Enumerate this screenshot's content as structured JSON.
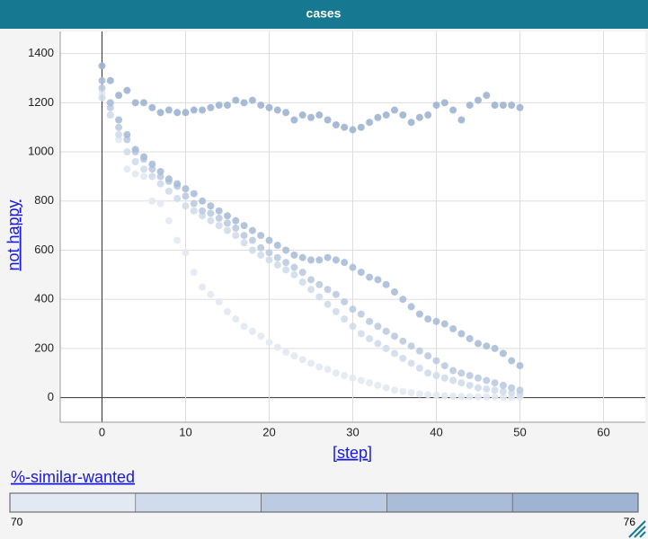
{
  "header": {
    "title": "cases"
  },
  "chart_data": {
    "type": "scatter",
    "x_label": "[step]",
    "y_label": "not happy",
    "xlim": [
      -5,
      65
    ],
    "xticks": [
      0,
      10,
      20,
      30,
      40,
      50,
      60
    ],
    "ylim": [
      -100,
      1490
    ],
    "yticks": [
      0,
      200,
      400,
      600,
      800,
      1000,
      1200,
      1400
    ],
    "grid": true,
    "x": [
      0,
      1,
      2,
      3,
      4,
      5,
      6,
      7,
      8,
      9,
      10,
      11,
      12,
      13,
      14,
      15,
      16,
      17,
      18,
      19,
      20,
      21,
      22,
      23,
      24,
      25,
      26,
      27,
      28,
      29,
      30,
      31,
      32,
      33,
      34,
      35,
      36,
      37,
      38,
      39,
      40,
      41,
      42,
      43,
      44,
      45,
      46,
      47,
      48,
      49,
      50
    ],
    "series": [
      {
        "color": "#e3e9f2",
        "values": [
          1240,
          1150,
          1050,
          930,
          910,
          900,
          800,
          790,
          720,
          640,
          590,
          510,
          450,
          420,
          390,
          350,
          320,
          290,
          270,
          250,
          225,
          205,
          185,
          170,
          155,
          140,
          125,
          115,
          100,
          90,
          80,
          70,
          60,
          50,
          40,
          30,
          25,
          20,
          15,
          12,
          10,
          8,
          6,
          5,
          4,
          3,
          3,
          2,
          2,
          1,
          1
        ]
      },
      {
        "color": "#d0dbeb",
        "values": [
          1220,
          1150,
          1070,
          1000,
          960,
          930,
          900,
          870,
          840,
          810,
          780,
          760,
          740,
          720,
          700,
          680,
          660,
          630,
          600,
          580,
          560,
          540,
          520,
          500,
          470,
          440,
          410,
          380,
          350,
          320,
          290,
          260,
          240,
          220,
          200,
          180,
          160,
          140,
          120,
          100,
          90,
          80,
          70,
          60,
          50,
          40,
          35,
          30,
          25,
          20,
          15
        ]
      },
      {
        "color": "#bccbe1",
        "values": [
          1260,
          1180,
          1100,
          1050,
          1000,
          970,
          930,
          900,
          880,
          860,
          820,
          790,
          760,
          750,
          730,
          710,
          690,
          660,
          640,
          610,
          590,
          570,
          550,
          530,
          510,
          480,
          460,
          440,
          420,
          390,
          360,
          340,
          310,
          290,
          270,
          250,
          230,
          210,
          190,
          170,
          150,
          130,
          110,
          100,
          90,
          80,
          70,
          60,
          50,
          40,
          30
        ]
      },
      {
        "color": "#aabdd8",
        "values": [
          1290,
          1200,
          1130,
          1070,
          1010,
          980,
          950,
          920,
          890,
          870,
          850,
          830,
          800,
          780,
          760,
          740,
          720,
          700,
          680,
          660,
          640,
          620,
          600,
          580,
          570,
          560,
          560,
          570,
          560,
          550,
          530,
          510,
          490,
          480,
          460,
          430,
          400,
          370,
          340,
          320,
          310,
          300,
          280,
          260,
          240,
          220,
          210,
          200,
          180,
          150,
          130
        ]
      },
      {
        "color": "#9fb4d2",
        "values": [
          1350,
          1290,
          1230,
          1250,
          1200,
          1200,
          1180,
          1160,
          1170,
          1160,
          1160,
          1170,
          1170,
          1180,
          1190,
          1190,
          1210,
          1200,
          1210,
          1190,
          1180,
          1170,
          1160,
          1130,
          1150,
          1140,
          1150,
          1130,
          1110,
          1100,
          1090,
          1100,
          1120,
          1140,
          1150,
          1170,
          1150,
          1120,
          1140,
          1150,
          1190,
          1200,
          1170,
          1130,
          1190,
          1210,
          1230,
          1190,
          1190,
          1190,
          1180
        ]
      }
    ]
  },
  "legend": {
    "title": "%-similar-wanted",
    "min": 70,
    "max": 76
  }
}
